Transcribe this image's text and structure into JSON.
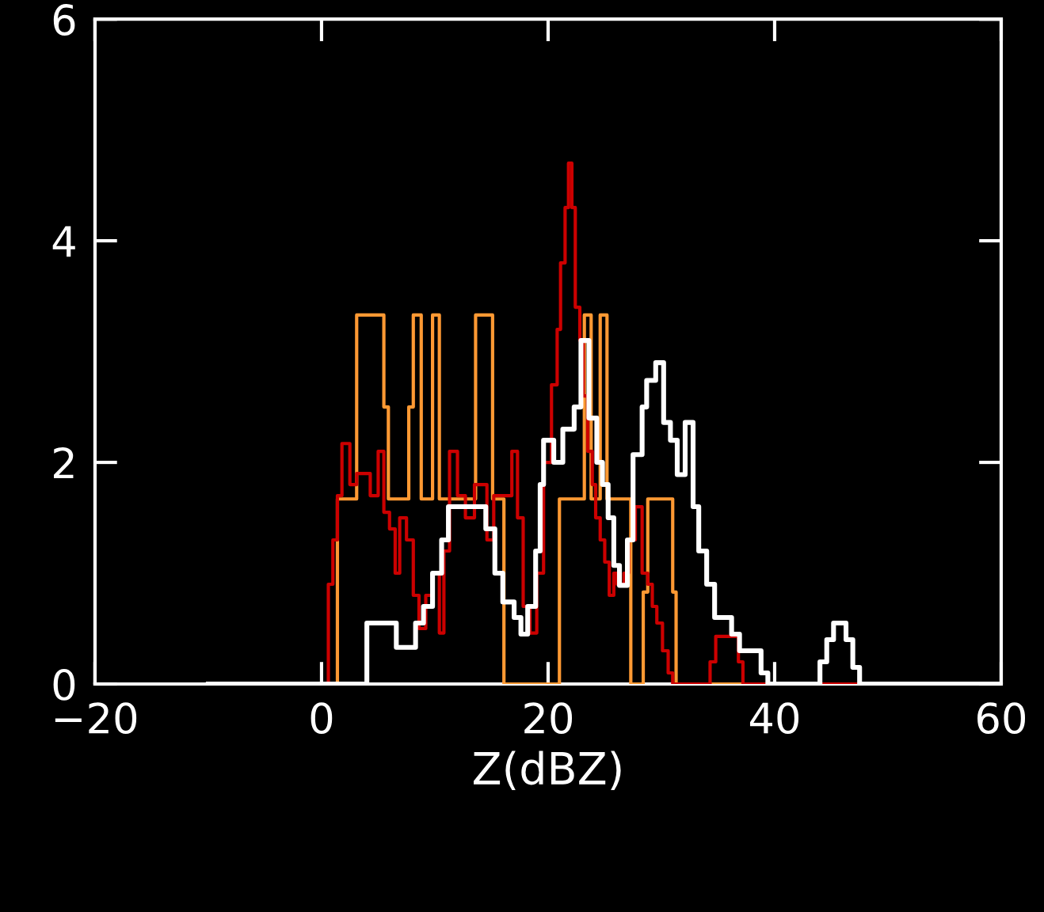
{
  "chart_data": {
    "type": "step",
    "xlabel": "Z(dBZ)",
    "xlim": [
      -20,
      60
    ],
    "ylim": [
      0,
      6
    ],
    "xticks": [
      {
        "value": -20,
        "label": "−20"
      },
      0,
      20,
      40,
      60
    ],
    "yticks": [
      0,
      2,
      4,
      6
    ],
    "grid": false,
    "legend": false,
    "series": [
      {
        "color": "#ffffff",
        "x": [
          -10,
          4.0,
          6.6,
          8.3,
          9,
          9.8,
          10.6,
          11.2,
          13,
          14.5,
          15.3,
          16,
          17,
          17.6,
          18.2,
          18.9,
          19.3,
          19.6,
          20.5,
          21.3,
          22.3,
          22.9,
          23.6,
          24.3,
          24.8,
          25.3,
          25.8,
          26.3,
          27,
          27.5,
          28.3,
          28.7,
          29.5,
          30.2,
          30.8,
          31.4,
          32.1,
          32.8,
          33.3,
          34,
          34.7,
          36.2,
          36.9,
          38.8,
          39.4,
          44,
          44.6,
          45.2,
          46.3,
          46.9,
          47.5,
          60
        ],
        "values": [
          0,
          0.55,
          0.33,
          0.55,
          0.7,
          1.0,
          1.3,
          1.6,
          1.6,
          1.4,
          1.0,
          0.74,
          0.6,
          0.45,
          0.7,
          1.2,
          1.8,
          2.2,
          2.0,
          2.3,
          2.5,
          3.1,
          2.4,
          2.0,
          1.8,
          1.5,
          1.07,
          0.89,
          1.3,
          2.07,
          2.5,
          2.74,
          2.9,
          2.36,
          2.2,
          1.89,
          2.36,
          1.6,
          1.2,
          0.9,
          0.6,
          0.45,
          0.3,
          0.1,
          0,
          0.2,
          0.4,
          0.55,
          0.4,
          0.15,
          0,
          0
        ]
      },
      {
        "color": "#cc0000",
        "x": [
          -10,
          0.6,
          1.0,
          1.4,
          1.8,
          2.5,
          3.1,
          4.3,
          5.0,
          5.5,
          6.0,
          6.5,
          6.9,
          7.5,
          8.1,
          8.6,
          9.2,
          9.8,
          10.4,
          10.8,
          11.3,
          12.0,
          12.7,
          13.5,
          14.6,
          15.2,
          16.8,
          17.3,
          17.8,
          18.4,
          19.0,
          19.6,
          20.3,
          20.8,
          21.1,
          21.5,
          21.8,
          22.1,
          22.4,
          22.8,
          23.1,
          23.5,
          23.9,
          24.2,
          24.6,
          25.0,
          25.4,
          25.8,
          26.1,
          26.7,
          27.1,
          27.7,
          28.3,
          28.8,
          29.2,
          29.6,
          30.1,
          30.6,
          31.0,
          34.3,
          34.8,
          36.8,
          37.2,
          60
        ],
        "values": [
          0,
          0.9,
          1.3,
          1.7,
          2.17,
          1.8,
          1.9,
          1.7,
          2.1,
          1.55,
          1.4,
          1.0,
          1.5,
          1.3,
          0.8,
          0.5,
          0.8,
          1.0,
          0.46,
          1.2,
          2.1,
          1.7,
          1.5,
          1.8,
          1.3,
          1.7,
          2.1,
          1.5,
          0.7,
          0.46,
          1.0,
          2.0,
          2.7,
          3.2,
          3.8,
          4.3,
          4.7,
          4.3,
          3.4,
          3.1,
          2.6,
          2.1,
          1.8,
          1.5,
          1.3,
          1.1,
          0.8,
          1.0,
          0.9,
          1.0,
          1.3,
          1.6,
          1.0,
          0.9,
          0.7,
          0.55,
          0.3,
          0.1,
          0,
          0.2,
          0.43,
          0.2,
          0,
          0
        ]
      },
      {
        "color": "#ff9933",
        "x": [
          -10,
          1.4,
          3.1,
          5.5,
          5.9,
          7.7,
          8.1,
          8.8,
          9.8,
          10.4,
          11.2,
          13.6,
          15.1,
          16.1,
          21,
          23.2,
          23.8,
          24.6,
          25.2,
          27.3,
          28.4,
          28.8,
          31,
          31.3,
          60
        ],
        "values": [
          0,
          1.67,
          3.33,
          2.5,
          1.67,
          2.5,
          3.33,
          1.67,
          3.33,
          1.67,
          1.67,
          3.33,
          1.67,
          0,
          1.67,
          3.33,
          1.67,
          3.33,
          1.67,
          0,
          0.83,
          1.67,
          0.83,
          0,
          0
        ]
      }
    ]
  }
}
